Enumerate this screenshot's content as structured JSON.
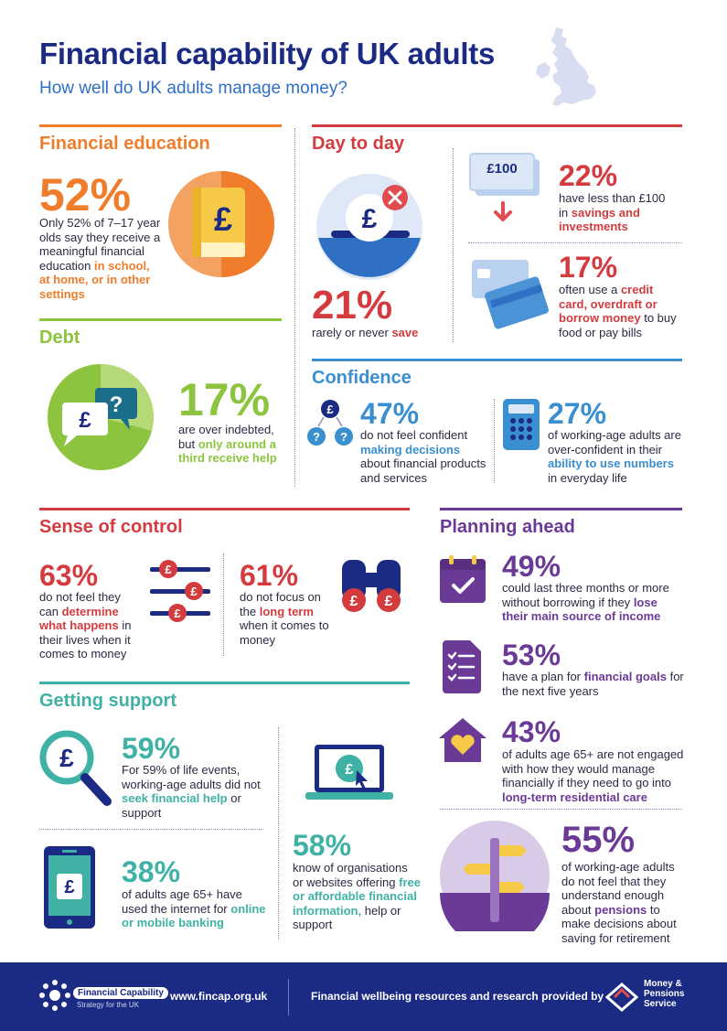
{
  "header": {
    "title": "Financial capability of UK adults",
    "subtitle": "How well do UK adults manage money?"
  },
  "colors": {
    "navy": "#1b2a82",
    "orange": "#ef7d2b",
    "red": "#d33b3f",
    "green": "#8cc43f",
    "blue": "#3a8fd0",
    "teal": "#3fb1a5",
    "purple": "#6b3a96"
  },
  "financial_education": {
    "heading": "Financial education",
    "stat": "52%",
    "text": "Only 52% of 7–17 year olds say they receive a meaningful financial education",
    "highlight": "in school, at home, or in other settings",
    "icon": "book-pound-icon"
  },
  "day_to_day": {
    "heading": "Day to day",
    "save_stat": "21%",
    "save_text": "rarely or never",
    "save_highlight": "save",
    "savings_stat": "22%",
    "savings_text": "have less than £100 in",
    "savings_highlight": "savings and investments",
    "note_label": "£100",
    "credit_stat": "17%",
    "credit_text_pre": "often use a",
    "credit_highlight": "credit card, overdraft or borrow money",
    "credit_text_post": "to buy food or pay bills"
  },
  "debt": {
    "heading": "Debt",
    "stat": "17%",
    "text": "are over indebted, but",
    "highlight": "only around a third receive help",
    "pie_share": 0.33
  },
  "confidence": {
    "heading": "Confidence",
    "stat1": "47%",
    "text1_pre": "do not feel confident",
    "text1_highlight": "making decisions",
    "text1_post": "about financial products and services",
    "stat2": "27%",
    "text2_pre": "of working-age adults are over-confident in their",
    "text2_highlight": "ability to use numbers",
    "text2_post": "in everyday life"
  },
  "sense_of_control": {
    "heading": "Sense of control",
    "stat1": "63%",
    "text1_pre": "do not feel they can",
    "text1_highlight": "determine what happens",
    "text1_post": "in their lives when it comes to money",
    "stat2": "61%",
    "text2_pre": "do not focus on the",
    "text2_highlight": "long term",
    "text2_post": "when it comes to money"
  },
  "planning_ahead": {
    "heading": "Planning ahead",
    "stat1": "49%",
    "text1_pre": "could last three months or more without borrowing if they",
    "text1_highlight": "lose their main source of income",
    "stat2": "53%",
    "text2_pre": "have a plan for",
    "text2_highlight": "financial goals",
    "text2_post": "for the next five years",
    "stat3": "43%",
    "text3_pre": "of adults age 65+ are not engaged with how they would manage financially if they need to go into",
    "text3_highlight": "long-term residential care",
    "stat4": "55%",
    "text4_pre": "of working-age adults do not feel that they understand enough about",
    "text4_highlight": "pensions",
    "text4_post": "to make decisions about saving for retirement"
  },
  "getting_support": {
    "heading": "Getting support",
    "stat1": "59%",
    "text1_pre": "For 59% of life events, working-age adults did not",
    "text1_highlight": "seek financial help",
    "text1_post": "or support",
    "stat2": "38%",
    "text2_pre": "of adults age 65+ have used the internet for",
    "text2_highlight": "online or mobile banking",
    "stat3": "58%",
    "text3_pre": "know of organisations or websites offering",
    "text3_highlight": "free or affordable financial information,",
    "text3_post": "help or support"
  },
  "footer": {
    "logo_name": "Financial Capability",
    "logo_tagline": "Strategy for the UK",
    "url": "www.fincap.org.uk",
    "credit": "Financial wellbeing resources and research provided by",
    "partner_line1": "Money &",
    "partner_line2": "Pensions",
    "partner_line3": "Service"
  }
}
